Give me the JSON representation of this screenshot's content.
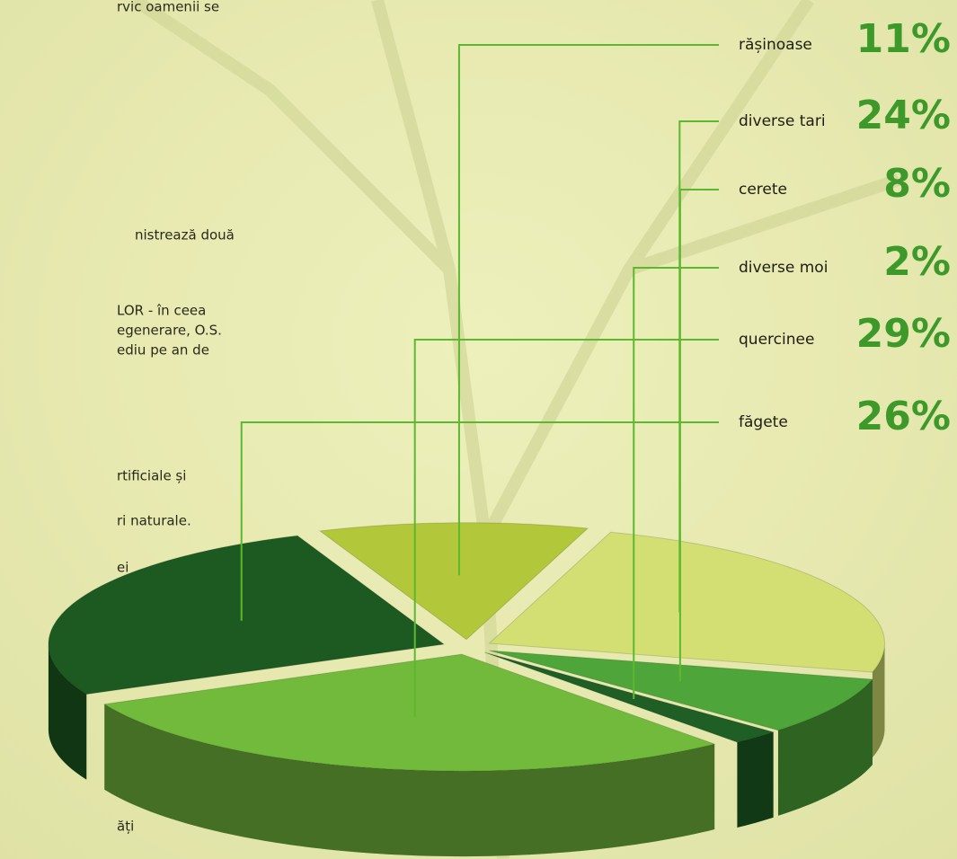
{
  "page_text": [
    "rvic oamenii se",
    "nistrează două",
    "LOR - în ceea",
    "egenerare, O.S.",
    "ediu pe an de",
    "rtificiale și",
    "ri naturale.",
    "ei",
    "ăți"
  ],
  "chart_data": {
    "type": "pie",
    "categories": [
      "rășinoase",
      "diverse tari",
      "cerete",
      "diverse moi",
      "quercinee",
      "făgete"
    ],
    "values": [
      11,
      24,
      8,
      2,
      29,
      26
    ],
    "value_labels": [
      "11%",
      "24%",
      "8%",
      "2%",
      "29%",
      "26%"
    ],
    "colors": [
      "#b3c73a",
      "#d3df72",
      "#4ea53a",
      "#1f5f25",
      "#72ba3c",
      "#1d5a22"
    ]
  }
}
